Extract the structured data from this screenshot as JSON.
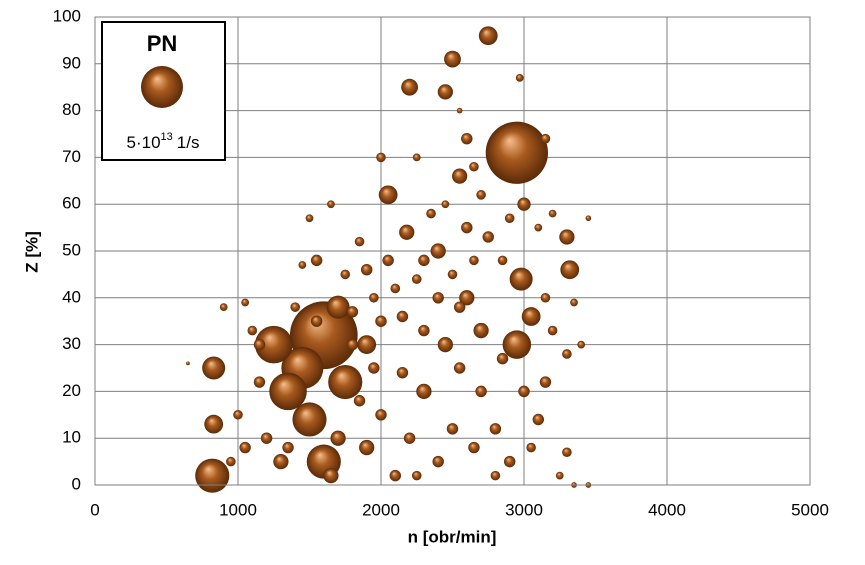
{
  "chart_data": {
    "type": "bubble",
    "x_label": "n [obr/min]",
    "y_label": "Z [%]",
    "xlim": [
      0,
      5000
    ],
    "xticks": [
      0,
      1000,
      2000,
      3000,
      4000,
      5000
    ],
    "ylim": [
      0,
      100
    ],
    "yticks": [
      0,
      10,
      20,
      30,
      40,
      50,
      60,
      70,
      80,
      90,
      100
    ],
    "grid": true,
    "legend": "upper left",
    "size_legend": {
      "value": 50000000000000.0,
      "label": [
        "5·10",
        "13",
        "1/s"
      ]
    },
    "series": [
      {
        "name": "PN",
        "color": "#a85a1e",
        "x": [
          1600,
          2950,
          1450,
          1250,
          1350,
          820,
          1750,
          1500,
          1600,
          2950,
          1700,
          830,
          2980,
          2750,
          830,
          3320,
          2050,
          1900,
          3050,
          2500,
          2200,
          2450,
          2550,
          2180,
          3300,
          2300,
          2450,
          2600,
          2700,
          2400,
          3000,
          2600,
          2600,
          2000,
          2970,
          3150,
          900,
          1050,
          1100,
          1150,
          1000,
          1050,
          950,
          1200,
          1300,
          1400,
          1450,
          1500,
          1650,
          1550,
          1750,
          1850,
          1900,
          1950,
          2050,
          2100,
          2150,
          2250,
          2300,
          2350,
          2450,
          2500,
          2550,
          2650,
          2700,
          2750,
          2850,
          2900,
          3100,
          3200,
          3350,
          3400,
          3450,
          3300,
          3200,
          3150,
          3100,
          3050,
          3300,
          3250,
          3450,
          3350,
          2900,
          2800,
          2700,
          2650,
          2500,
          2550,
          2400,
          2300,
          2200,
          2150,
          2100,
          2000,
          1950,
          1900,
          1850,
          1800,
          1700,
          1650,
          1550,
          1350,
          1150,
          2250,
          2800,
          3000,
          2850,
          2400,
          2000,
          1800,
          650,
          3150,
          2650,
          2250,
          2550
        ],
        "values": [
          32,
          71,
          25,
          30,
          20,
          2,
          22,
          14,
          5,
          30,
          38,
          25,
          44,
          96,
          13,
          46,
          62,
          30,
          36,
          91,
          85,
          84,
          66,
          54,
          53,
          20,
          30,
          40,
          33,
          50,
          60,
          55,
          74,
          70,
          87,
          74,
          38,
          39,
          33,
          22,
          15,
          8,
          5,
          10,
          5,
          38,
          47,
          57,
          60,
          48,
          45,
          52,
          46,
          40,
          48,
          42,
          36,
          44,
          48,
          58,
          60,
          45,
          38,
          48,
          62,
          53,
          48,
          57,
          55,
          58,
          39,
          30,
          57,
          28,
          33,
          22,
          14,
          8,
          7,
          2,
          0,
          0,
          5,
          12,
          20,
          8,
          12,
          25,
          5,
          33,
          10,
          24,
          2,
          15,
          25,
          8,
          18,
          30,
          10,
          2,
          35,
          8,
          30,
          2,
          2,
          20,
          27,
          40,
          35,
          37,
          26,
          40,
          68,
          70,
          80
        ],
        "sizes": [
          130000000000000.0,
          110000000000000.0,
          50000000000000.0,
          40000000000000.0,
          40000000000000.0,
          33000000000000.0,
          33000000000000.0,
          33000000000000.0,
          33000000000000.0,
          23000000000000.0,
          15000000000000.0,
          15000000000000.0,
          15000000000000.0,
          10000000000000.0,
          10000000000000.0,
          10000000000000.0,
          10000000000000.0,
          10000000000000.0,
          10000000000000.0,
          8000000000000.0,
          8000000000000.0,
          6600000000000.0,
          6600000000000.0,
          6600000000000.0,
          6600000000000.0,
          6600000000000.0,
          6600000000000.0,
          6600000000000.0,
          6600000000000.0,
          6600000000000.0,
          5000000000000.0,
          3700000000000.0,
          3700000000000.0,
          2600000000000.0,
          1700000000000.0,
          2600000000000.0,
          1700000000000.0,
          1700000000000.0,
          2600000000000.0,
          3700000000000.0,
          2600000000000.0,
          3700000000000.0,
          2600000000000.0,
          3700000000000.0,
          6600000000000.0,
          2600000000000.0,
          1700000000000.0,
          1700000000000.0,
          1700000000000.0,
          3700000000000.0,
          2600000000000.0,
          2600000000000.0,
          3700000000000.0,
          2600000000000.0,
          3700000000000.0,
          2600000000000.0,
          3700000000000.0,
          2600000000000.0,
          3700000000000.0,
          2600000000000.0,
          1700000000000.0,
          2600000000000.0,
          3700000000000.0,
          2600000000000.0,
          2600000000000.0,
          3700000000000.0,
          2600000000000.0,
          2600000000000.0,
          1700000000000.0,
          1700000000000.0,
          1700000000000.0,
          1700000000000.0,
          900000000000.0,
          2600000000000.0,
          2600000000000.0,
          3700000000000.0,
          3700000000000.0,
          2600000000000.0,
          2600000000000.0,
          1700000000000.0,
          900000000000.0,
          900000000000.0,
          3700000000000.0,
          3700000000000.0,
          3700000000000.0,
          3700000000000.0,
          3700000000000.0,
          3700000000000.0,
          3700000000000.0,
          3700000000000.0,
          3700000000000.0,
          3700000000000.0,
          3700000000000.0,
          3700000000000.0,
          3700000000000.0,
          6600000000000.0,
          3700000000000.0,
          3700000000000.0,
          6600000000000.0,
          6600000000000.0,
          3700000000000.0,
          3700000000000.0,
          3700000000000.0,
          2600000000000.0,
          2600000000000.0,
          3700000000000.0,
          3700000000000.0,
          3700000000000.0,
          3700000000000.0,
          3700000000000.0,
          400000000000.0,
          2600000000000.0,
          2600000000000.0,
          1700000000000.0,
          900000000000.0
        ]
      }
    ]
  }
}
